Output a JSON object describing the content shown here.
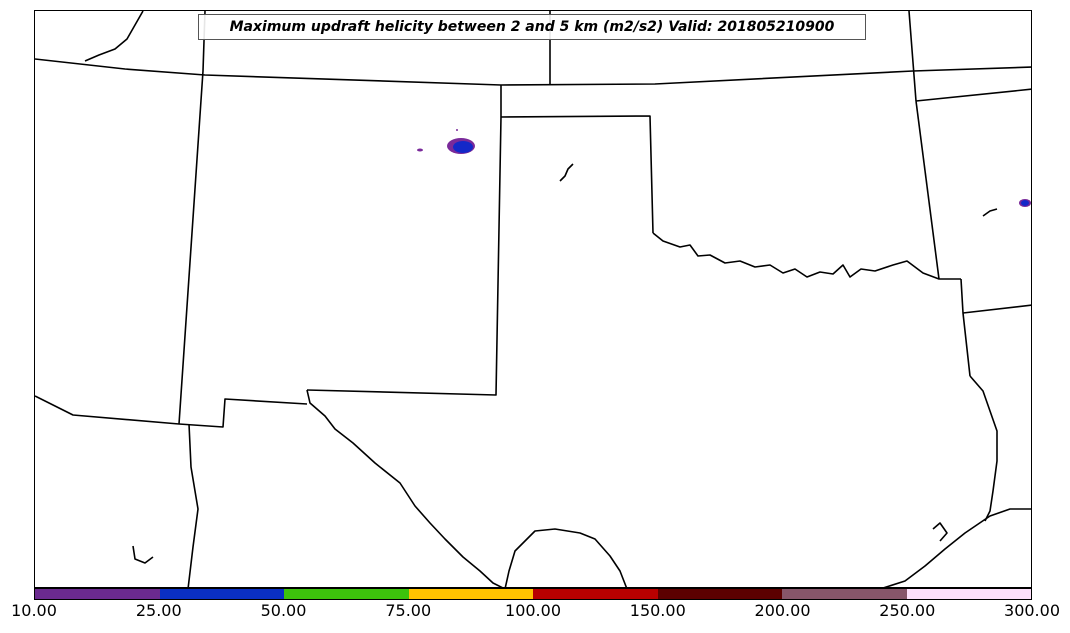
{
  "title": "Maximum updraft helicity between 2 and 5 km (m2/s2) Valid: 201805210900",
  "colorbar": {
    "labels": [
      "10.00",
      "25.00",
      "50.00",
      "75.00",
      "100.00",
      "150.00",
      "200.00",
      "250.00",
      "300.00"
    ],
    "colors": [
      "#6b2a8f",
      "#0a2fc4",
      "#3dc40c",
      "#ffc400",
      "#b80000",
      "#5c0000",
      "#87566a",
      "#fde0fb"
    ]
  },
  "map": {
    "border_color": "#000000",
    "field_colors": {
      "core": "#1428c8",
      "edge": "#7a2a9a"
    }
  }
}
